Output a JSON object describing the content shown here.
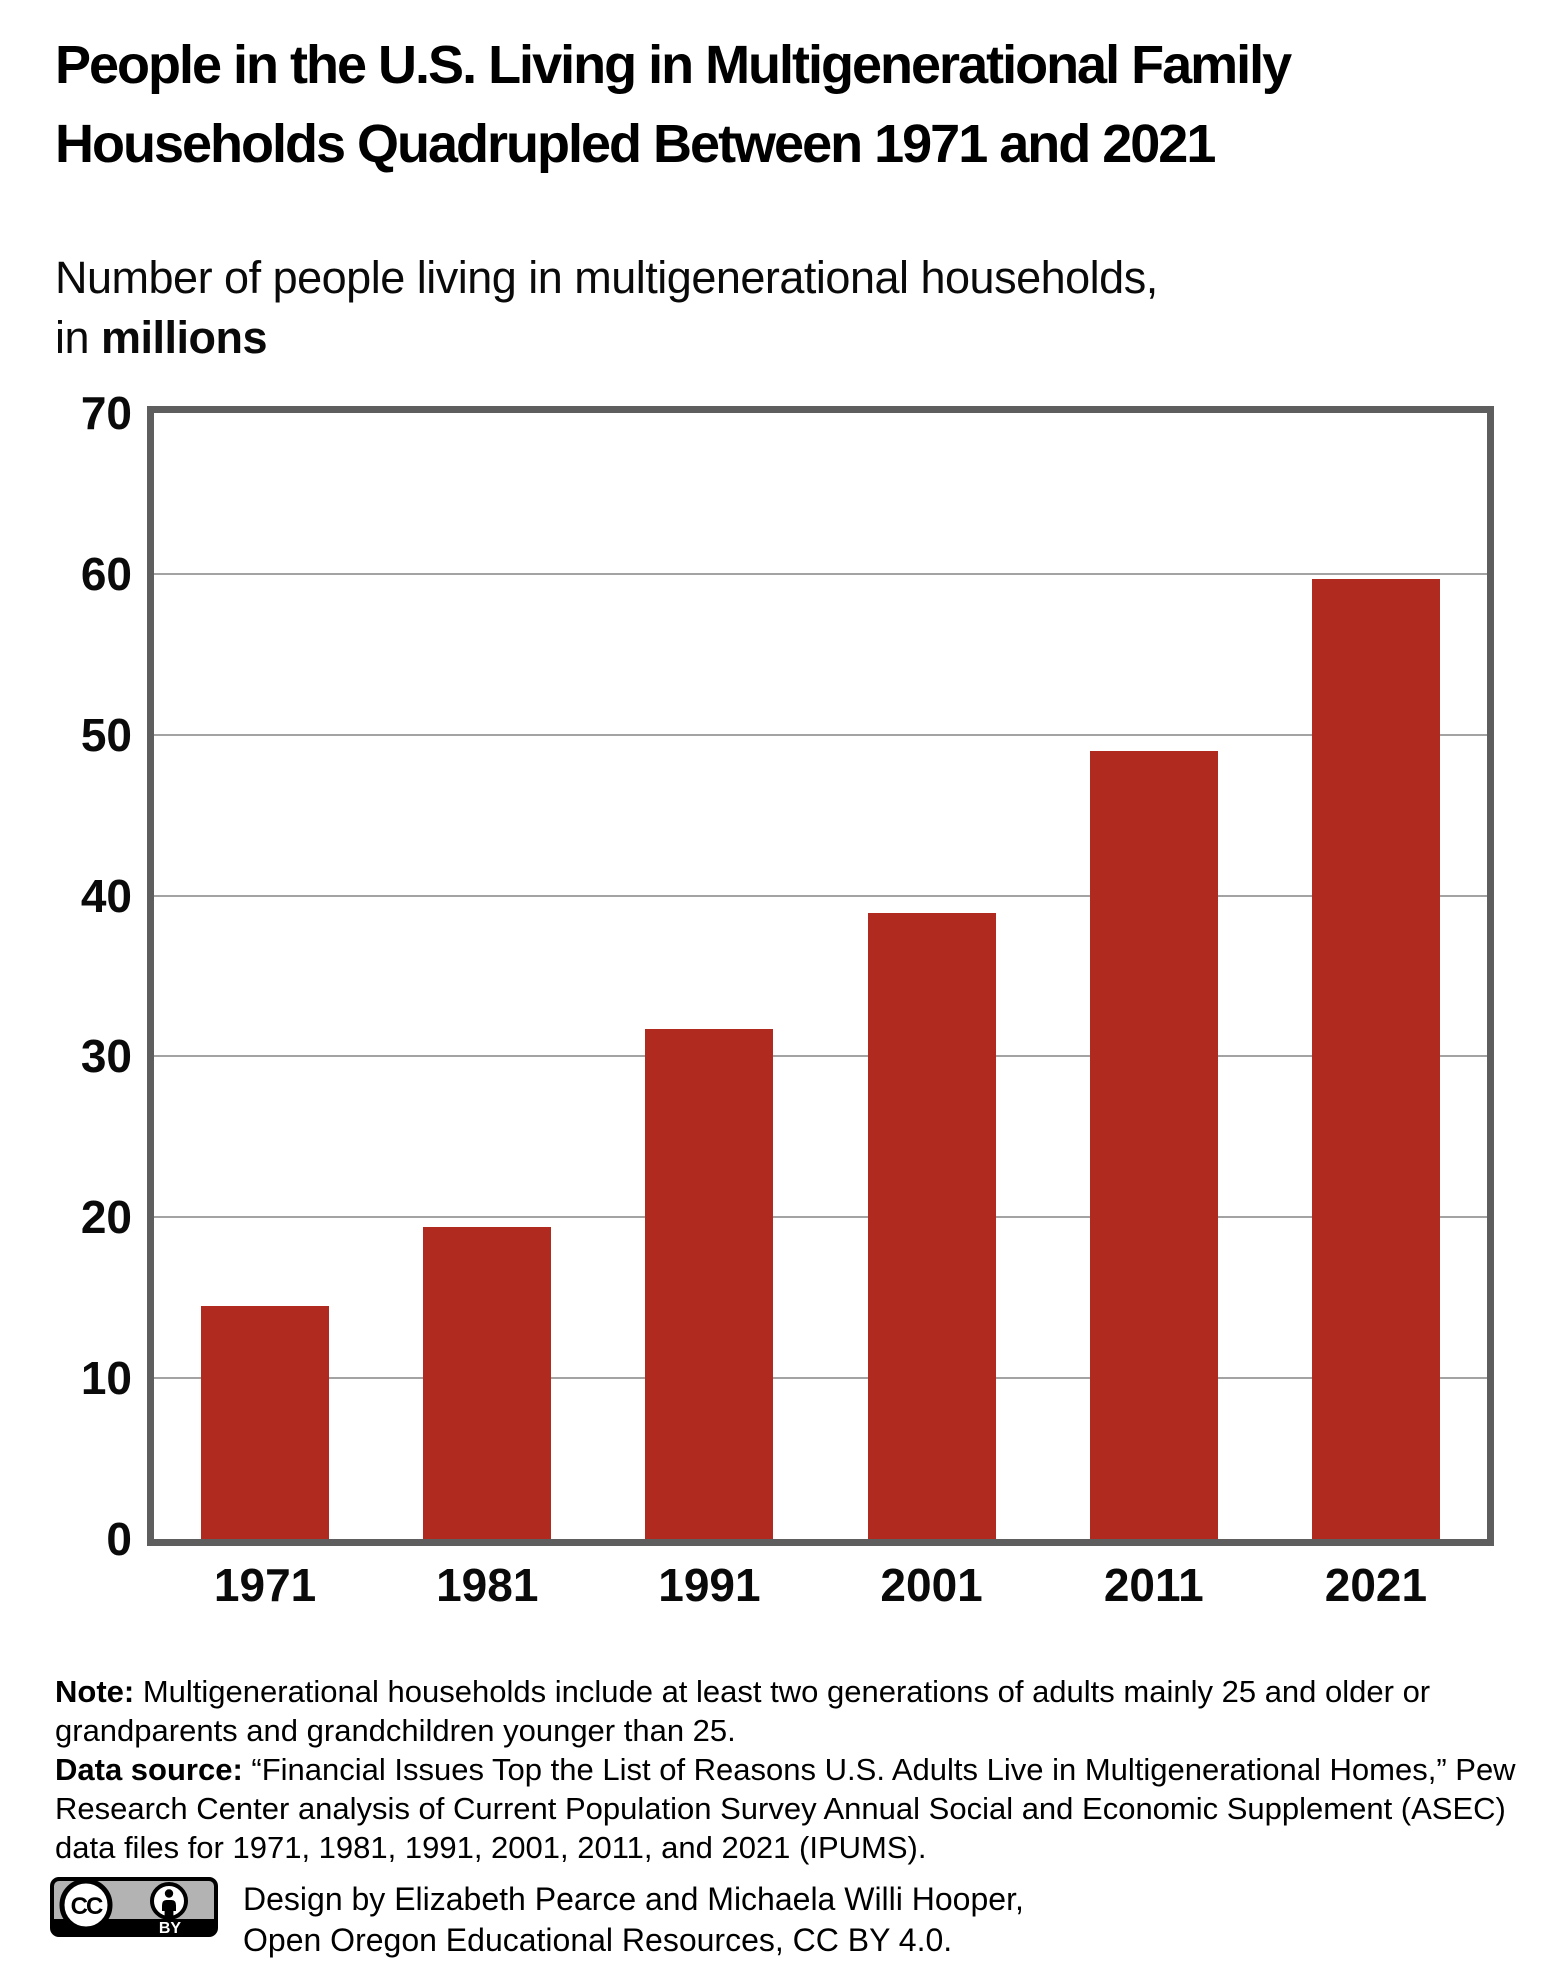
{
  "title": {
    "line1": "People in the U.S. Living in Multigenerational Family",
    "line2": "Households Quadrupled Between 1971 and 2021"
  },
  "subtitle": {
    "line1": "Number of people living in multigenerational households,",
    "line2_prefix": "in ",
    "line2_emphasis": "millions"
  },
  "chart_data": {
    "type": "bar",
    "title": "People in the U.S. Living in Multigenerational Family Households Quadrupled Between 1971 and 2021",
    "ylabel": "Number of people living in multigenerational households, in millions",
    "xlabel": "",
    "categories": [
      "1971",
      "1981",
      "1991",
      "2001",
      "2011",
      "2021"
    ],
    "values": [
      14.5,
      19.4,
      31.7,
      38.9,
      49.0,
      59.7
    ],
    "ylim": [
      0,
      70
    ],
    "ytick_interval": 10,
    "yticks": [
      "0",
      "10",
      "20",
      "30",
      "40",
      "50",
      "60",
      "70"
    ],
    "grid": "horizontal",
    "legend": "none",
    "bar_color": "#b02a20"
  },
  "colors": {
    "bar": "#b02a20",
    "axis_border": "#5e5e5e",
    "gridline": "#a3a3a3",
    "text": "#000000",
    "badge_gray": "#b3b3b3",
    "badge_black": "#000000"
  },
  "note": {
    "label": "Note:",
    "text": " Multigenerational households include at least two generations of adults mainly 25 and older or grandparents and grandchildren younger than 25.",
    "source_label": "Data source:",
    "source_text": " “Financial Issues Top the List of Reasons U.S. Adults Live in Multigenerational Homes,” Pew Research Center analysis of Current Population Survey Annual Social and Economic Supplement (ASEC) data files for 1971, 1981, 1991, 2001, 2011, and 2021 (IPUMS)."
  },
  "credit": {
    "line1": "Design by Elizabeth Pearce and Michaela Willi Hooper,",
    "line2": "Open Oregon Educational Resources, CC BY 4.0."
  },
  "badge": {
    "cc_label": "CC",
    "by_label": "BY"
  }
}
